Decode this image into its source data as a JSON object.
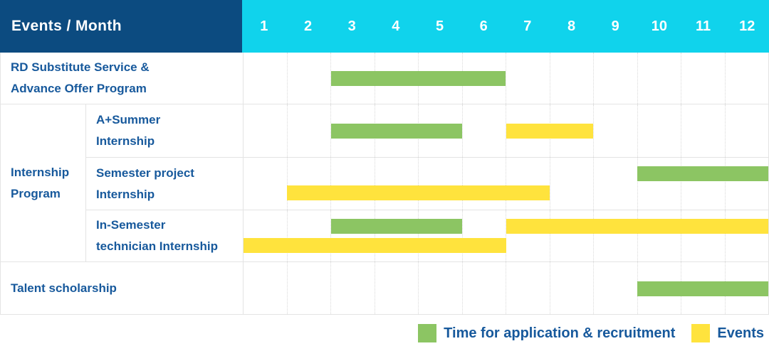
{
  "gantt": {
    "header_title": "Events / Month",
    "months": [
      "1",
      "2",
      "3",
      "4",
      "5",
      "6",
      "7",
      "8",
      "9",
      "10",
      "11",
      "12"
    ],
    "colors": {
      "header_bg": "#0c4b80",
      "months_bg": "#10d3ec",
      "recruitment": "#8cc563",
      "events": "#ffe33d",
      "label_text": "#17599c"
    },
    "group": {
      "id": "internship-program",
      "label_lines": [
        "Internship",
        "Program"
      ]
    },
    "rows": [
      {
        "id": "rd-substitute-service",
        "group": null,
        "label_lines": [
          "RD Substitute Service &",
          "Advance Offer Program"
        ],
        "bars": [
          {
            "legend": "recruitment",
            "start_month": 3,
            "end_month": 6,
            "lane": "mid"
          }
        ]
      },
      {
        "id": "a-plus-summer-internship",
        "group": "internship-program",
        "label_lines": [
          "A+Summer",
          "Internship"
        ],
        "bars": [
          {
            "legend": "recruitment",
            "start_month": 3,
            "end_month": 5,
            "lane": "mid"
          },
          {
            "legend": "events",
            "start_month": 7,
            "end_month": 8,
            "lane": "mid"
          }
        ]
      },
      {
        "id": "semester-project-internship",
        "group": "internship-program",
        "label_lines": [
          "Semester project",
          "Internship"
        ],
        "bars": [
          {
            "legend": "recruitment",
            "start_month": 10,
            "end_month": 12,
            "lane": "top"
          },
          {
            "legend": "events",
            "start_month": 2,
            "end_month": 7,
            "lane": "bottom"
          }
        ]
      },
      {
        "id": "in-semester-technician-internship",
        "group": "internship-program",
        "label_lines": [
          "In-Semester",
          "technician Internship"
        ],
        "bars": [
          {
            "legend": "recruitment",
            "start_month": 3,
            "end_month": 5,
            "lane": "top"
          },
          {
            "legend": "events",
            "start_month": 7,
            "end_month": 12,
            "lane": "top"
          },
          {
            "legend": "events",
            "start_month": 1,
            "end_month": 6,
            "lane": "bottom"
          }
        ]
      },
      {
        "id": "talent-scholarship",
        "group": null,
        "label_lines": [
          "Talent scholarship"
        ],
        "bars": [
          {
            "legend": "recruitment",
            "start_month": 10,
            "end_month": 12,
            "lane": "mid"
          }
        ]
      }
    ],
    "legend": [
      {
        "key": "recruitment",
        "label": "Time for application & recruitment"
      },
      {
        "key": "events",
        "label": "Events"
      }
    ]
  },
  "chart_data": {
    "type": "gantt",
    "title": "Events / Month",
    "x_axis": {
      "label": "Month",
      "ticks": [
        1,
        2,
        3,
        4,
        5,
        6,
        7,
        8,
        9,
        10,
        11,
        12
      ]
    },
    "legend_position": "bottom-right",
    "series": [
      {
        "name": "Time for application & recruitment",
        "color": "#8cc563",
        "bars": [
          {
            "row": "RD Substitute Service & Advance Offer Program",
            "start": 3,
            "end": 6
          },
          {
            "row": "Internship Program / A+Summer Internship",
            "start": 3,
            "end": 5
          },
          {
            "row": "Internship Program / Semester project Internship",
            "start": 10,
            "end": 12
          },
          {
            "row": "Internship Program / In-Semester technician Internship",
            "start": 3,
            "end": 5
          },
          {
            "row": "Talent scholarship",
            "start": 10,
            "end": 12
          }
        ]
      },
      {
        "name": "Events",
        "color": "#ffe33d",
        "bars": [
          {
            "row": "Internship Program / A+Summer Internship",
            "start": 7,
            "end": 8
          },
          {
            "row": "Internship Program / Semester project Internship",
            "start": 2,
            "end": 7
          },
          {
            "row": "Internship Program / In-Semester technician Internship",
            "start": 7,
            "end": 12
          },
          {
            "row": "Internship Program / In-Semester technician Internship",
            "start": 1,
            "end": 6
          }
        ]
      }
    ]
  }
}
